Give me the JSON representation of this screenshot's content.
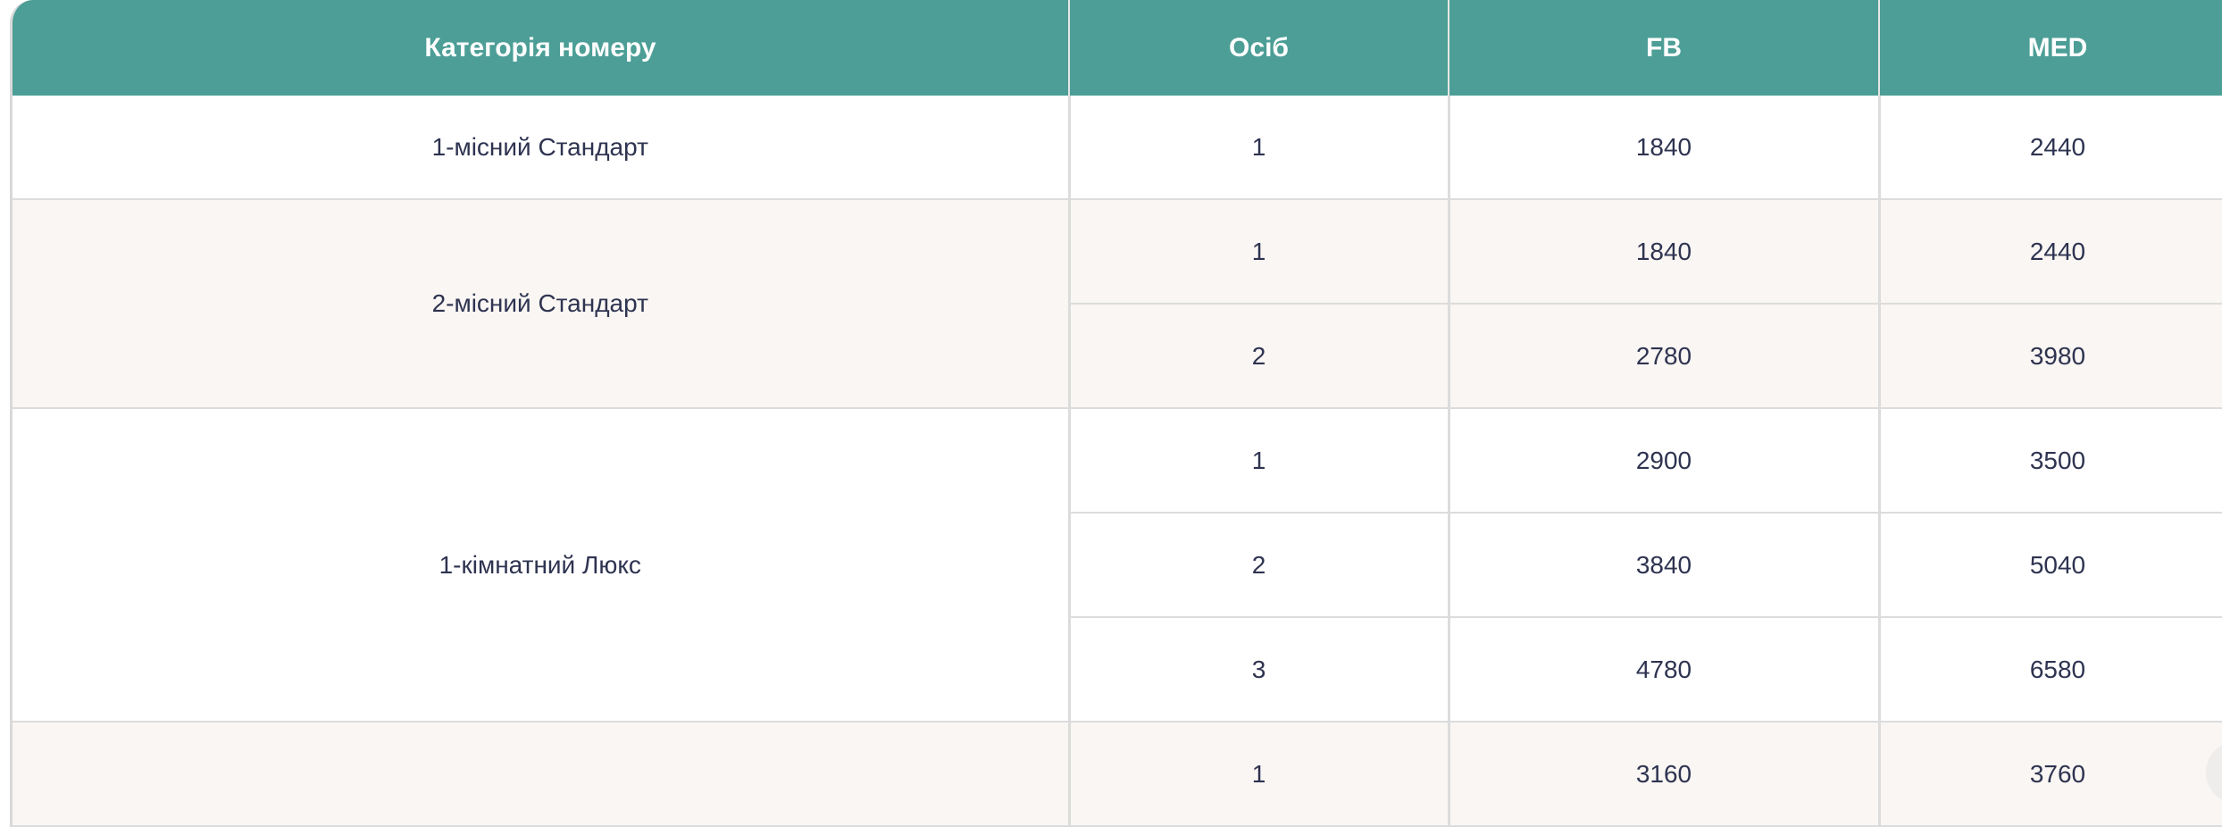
{
  "table": {
    "headers": [
      "Категорія номеру",
      "Осіб",
      "FB",
      "MED"
    ],
    "groups": [
      {
        "category": "1-місний Стандарт",
        "rows": [
          {
            "persons": "1",
            "fb": "1840",
            "med": "2440"
          }
        ]
      },
      {
        "category": "2-місний Стандарт",
        "rows": [
          {
            "persons": "1",
            "fb": "1840",
            "med": "2440"
          },
          {
            "persons": "2",
            "fb": "2780",
            "med": "3980"
          }
        ]
      },
      {
        "category": "1-кімнатний Люкс",
        "rows": [
          {
            "persons": "1",
            "fb": "2900",
            "med": "3500"
          },
          {
            "persons": "2",
            "fb": "3840",
            "med": "5040"
          },
          {
            "persons": "3",
            "fb": "4780",
            "med": "6580"
          }
        ]
      },
      {
        "category": "",
        "rows": [
          {
            "persons": "1",
            "fb": "3160",
            "med": "3760"
          }
        ]
      }
    ]
  },
  "colors": {
    "header_bg": "#4c9e96",
    "alt_row_bg": "#f9f6f3",
    "text": "#2e3350"
  }
}
